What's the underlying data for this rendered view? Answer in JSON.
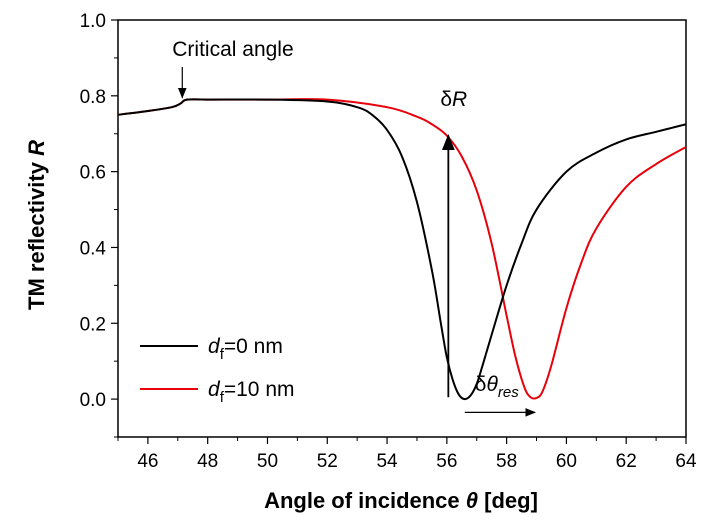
{
  "chart_data": {
    "type": "line",
    "xlabel": "Angle of incidence θ [deg]",
    "ylabel": "TM reflectivity R",
    "xlim": [
      45,
      64
    ],
    "ylim": [
      -0.1,
      1.0
    ],
    "xticks": [
      "46",
      "48",
      "50",
      "52",
      "54",
      "56",
      "58",
      "60",
      "62",
      "64"
    ],
    "yticks": [
      "0.0",
      "0.2",
      "0.4",
      "0.6",
      "0.8",
      "1.0"
    ],
    "grid": false,
    "legend_position": "bottom-left",
    "series": [
      {
        "name": "d_f=0 nm",
        "legend_var": "d",
        "legend_sub": "f",
        "legend_rest": "=0 nm",
        "color": "#000000",
        "x": [
          45.0,
          46.0,
          46.8,
          47.1,
          47.3,
          48.0,
          50.0,
          52.0,
          53.0,
          53.5,
          54.0,
          54.5,
          55.0,
          55.5,
          55.8,
          56.0,
          56.2,
          56.4,
          56.6,
          56.8,
          57.0,
          57.2,
          57.5,
          58.0,
          58.5,
          59.0,
          60.0,
          61.0,
          62.0,
          63.0,
          64.0
        ],
        "y": [
          0.75,
          0.76,
          0.77,
          0.78,
          0.79,
          0.79,
          0.79,
          0.785,
          0.77,
          0.75,
          0.71,
          0.64,
          0.52,
          0.34,
          0.2,
          0.11,
          0.05,
          0.012,
          0.0,
          0.01,
          0.04,
          0.09,
          0.17,
          0.3,
          0.41,
          0.5,
          0.6,
          0.65,
          0.685,
          0.705,
          0.725
        ]
      },
      {
        "name": "d_f=10 nm",
        "legend_var": "d",
        "legend_sub": "f",
        "legend_rest": "=10 nm",
        "color": "#e8000b",
        "x": [
          45.0,
          46.0,
          46.8,
          47.1,
          47.3,
          48.0,
          50.0,
          52.0,
          54.0,
          55.0,
          55.5,
          56.0,
          56.5,
          57.0,
          57.5,
          58.0,
          58.3,
          58.6,
          58.8,
          59.0,
          59.2,
          59.5,
          60.0,
          60.5,
          61.0,
          62.0,
          63.0,
          64.0
        ],
        "y": [
          0.75,
          0.76,
          0.77,
          0.78,
          0.79,
          0.79,
          0.79,
          0.79,
          0.77,
          0.745,
          0.725,
          0.695,
          0.64,
          0.55,
          0.41,
          0.22,
          0.11,
          0.03,
          0.005,
          0.003,
          0.02,
          0.09,
          0.24,
          0.36,
          0.45,
          0.56,
          0.62,
          0.665
        ]
      }
    ],
    "annotations": {
      "critical_angle": {
        "text": "Critical angle",
        "x": 47.15,
        "y": 0.79
      },
      "delta_r": {
        "delta": "δ",
        "var": "R",
        "x": 56.05,
        "y_from": 0.005,
        "y_to": 0.695
      },
      "delta_theta": {
        "delta": "δ",
        "var": "θ",
        "sub": "res",
        "x_from": 56.6,
        "x_to": 58.95,
        "y": -0.035
      }
    }
  }
}
